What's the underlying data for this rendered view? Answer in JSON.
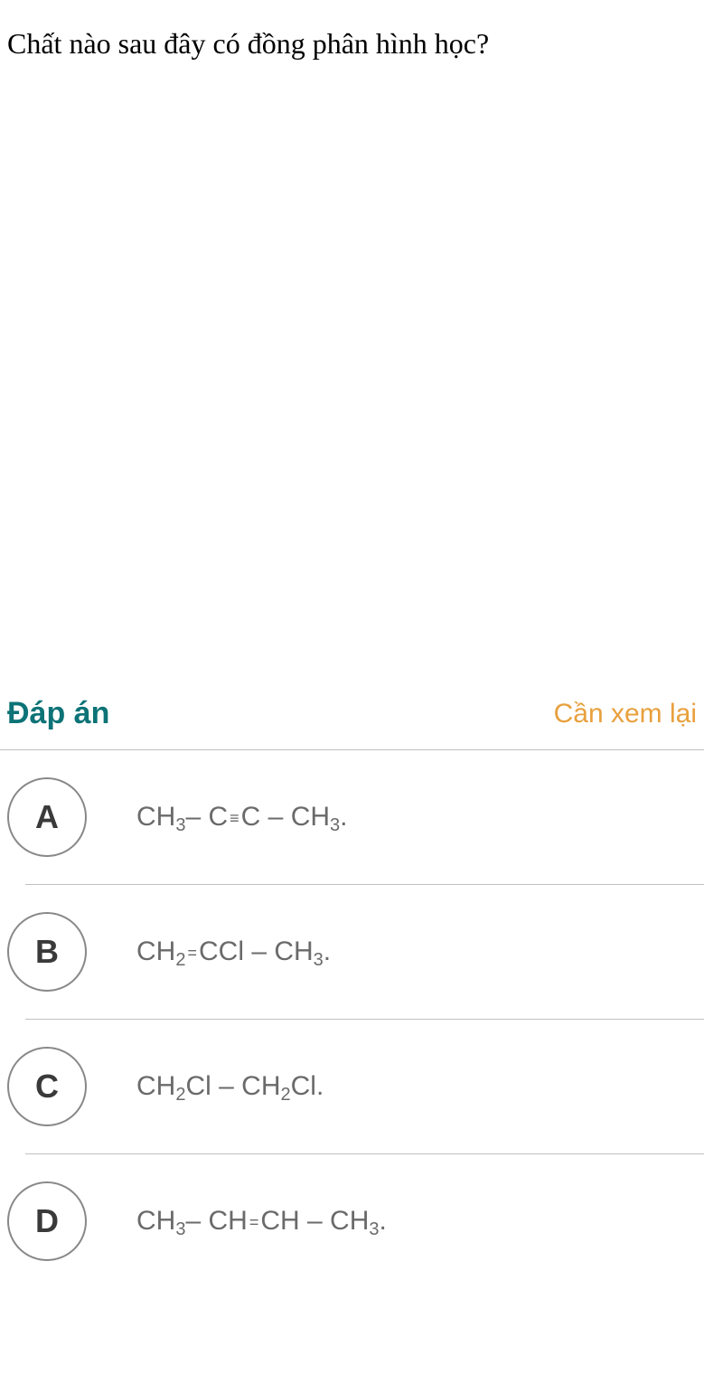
{
  "question": {
    "text": "Chất nào sau đây có đồng phân hình học?"
  },
  "answer_section": {
    "label": "Đáp án",
    "review_label": "Cần xem lại"
  },
  "options": [
    {
      "letter": "A",
      "formula_parts": [
        "CH",
        "3",
        " – C ",
        "≡",
        " C – CH",
        "3",
        "."
      ]
    },
    {
      "letter": "B",
      "formula_parts": [
        "CH",
        "2",
        " ",
        "=",
        " CCl – CH",
        "3",
        "."
      ]
    },
    {
      "letter": "C",
      "formula_parts": [
        "CH",
        "2",
        "Cl – CH",
        "2",
        "Cl."
      ]
    },
    {
      "letter": "D",
      "formula_parts": [
        "CH",
        "3",
        " – CH ",
        "=",
        " CH – CH",
        "3",
        "."
      ]
    }
  ],
  "colors": {
    "teal": "#0d7377",
    "orange": "#e8a03d",
    "text_dark": "#000000",
    "text_gray": "#6a6a6a",
    "border_gray": "#888888",
    "divider": "#c0c0c0",
    "background": "#ffffff"
  }
}
